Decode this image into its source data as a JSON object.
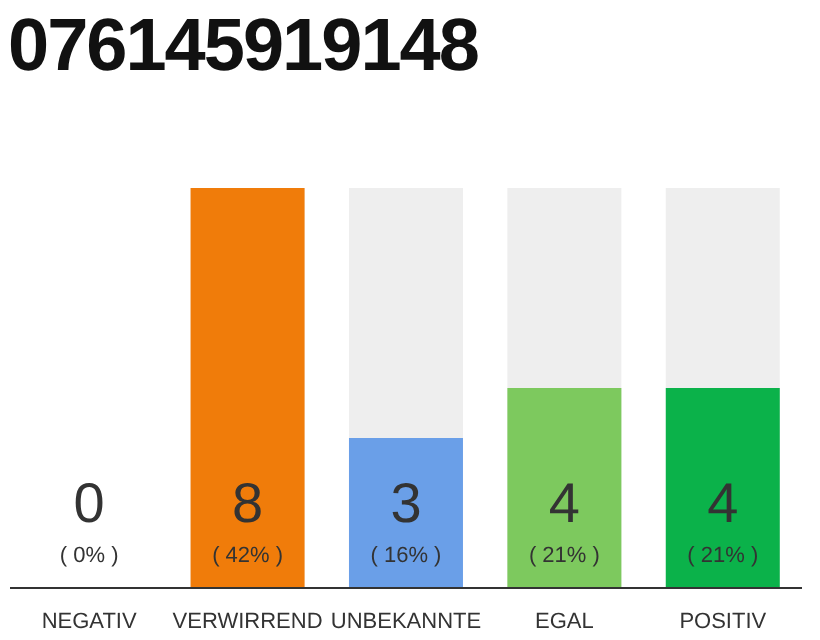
{
  "chart_data": {
    "type": "bar",
    "title": "076145919148",
    "categories": [
      "NEGATIV",
      "VERWIRREND",
      "UNBEKANNTE",
      "EGAL",
      "POSITIV"
    ],
    "values": [
      0,
      8,
      3,
      4,
      4
    ],
    "colors": [
      "#9e9e9e",
      "#f07c0a",
      "#6a9fe8",
      "#7dc95e",
      "#0bb24a"
    ],
    "value_labels": [
      "0\n( 0% )",
      "8\n( 42% )",
      "3\n( 16% )",
      "4\n( 21% )",
      "4\n( 21% )"
    ]
  }
}
